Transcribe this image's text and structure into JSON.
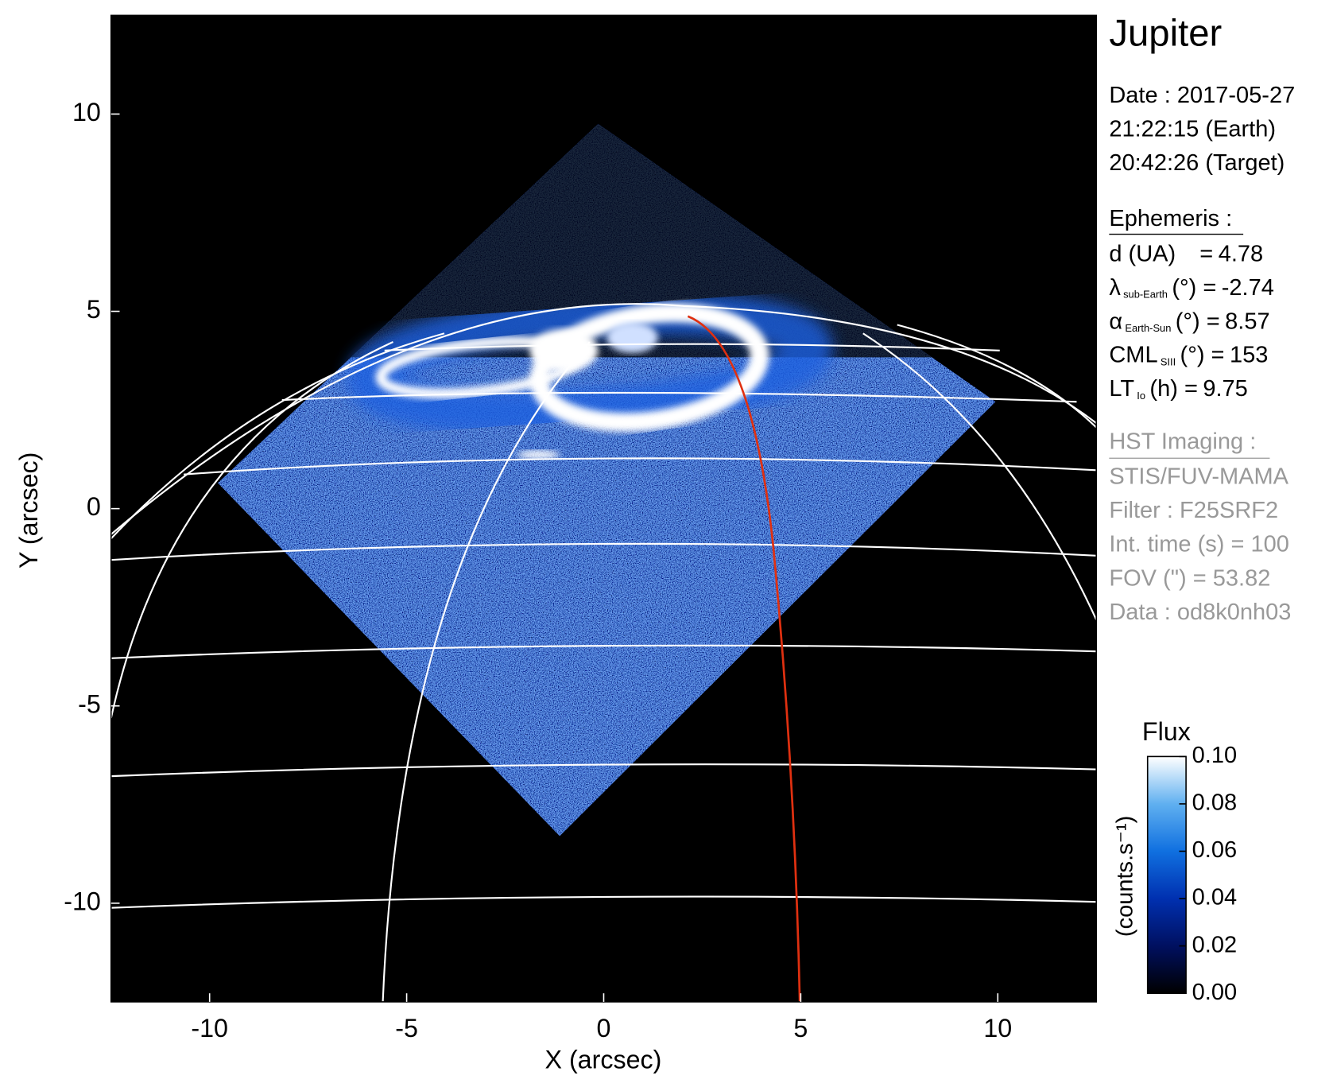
{
  "chart_data": {
    "type": "image",
    "title": "Jupiter",
    "xlabel": "X (arcsec)",
    "ylabel": "Y (arcsec)",
    "xlim": [
      -12.5,
      12.5
    ],
    "ylim": [
      -12.5,
      12.5
    ],
    "xticks": [
      -10,
      -5,
      0,
      5,
      10
    ],
    "yticks": [
      -10,
      -5,
      0,
      5,
      10
    ],
    "colorbar": {
      "title": "Flux",
      "label": "(counts.s⁻¹)",
      "lim": [
        0,
        0.1
      ],
      "colormap": [
        "#000000",
        "#001060",
        "#0030b0",
        "#1070e0",
        "#60b0f0",
        "#ffffff"
      ],
      "ticks": [
        {
          "value": 0,
          "label": "0.00"
        },
        {
          "value": 0.02,
          "label": "0.02"
        },
        {
          "value": 0.04,
          "label": "0.04"
        },
        {
          "value": 0.06,
          "label": "0.06"
        },
        {
          "value": 0.08,
          "label": "0.08"
        },
        {
          "value": 0.1,
          "label": "0.10"
        }
      ]
    },
    "info": [
      "Date : 2017-05-27",
      "21:22:15 (Earth)",
      "20:42:26 (Target)"
    ],
    "ephemeris": {
      "title": "Ephemeris :",
      "rows": [
        {
          "symbol": "d (UA)",
          "unit": "=",
          "value": 4.78
        },
        {
          "symbol": "λ",
          "subscript": "sub-Earth",
          "unit": "(°) =",
          "value": -2.74
        },
        {
          "symbol": "α",
          "subscript": "Earth-Sun",
          "unit": "(°) =",
          "value": 8.57
        },
        {
          "symbol": "CML",
          "subscript": "SIII",
          "unit": "(°) =",
          "value": 153
        },
        {
          "symbol": "LT",
          "subscript": "Io",
          "unit": "(h) =",
          "value": 9.75
        }
      ]
    },
    "imaging": {
      "title": "HST Imaging :",
      "lines": [
        "STIS/FUV-MAMA",
        "Filter : F25SRF2",
        "Int. time (s) = 100",
        "FOV (\") = 53.82",
        "Data : od8k0nh03"
      ]
    }
  }
}
